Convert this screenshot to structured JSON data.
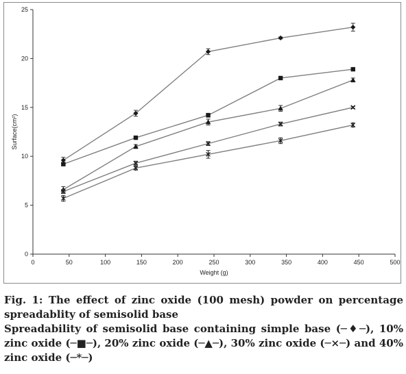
{
  "chart_data": {
    "type": "line",
    "xlabel": "Weight (g)",
    "ylabel": "Surface(cm²)",
    "xlim": [
      0,
      500
    ],
    "ylim": [
      0,
      25
    ],
    "xticks": [
      0,
      50,
      100,
      150,
      200,
      250,
      300,
      350,
      400,
      450,
      500
    ],
    "yticks": [
      0,
      5,
      10,
      15,
      20,
      25
    ],
    "grid": false,
    "legend": "none",
    "series": [
      {
        "marker": "diamond",
        "color": "#1a1a1a",
        "x": [
          42,
          142,
          242,
          342,
          442
        ],
        "y": [
          9.6,
          14.4,
          20.7,
          22.1,
          23.2
        ],
        "err": [
          0.3,
          0.3,
          0.3,
          0.1,
          0.4
        ]
      },
      {
        "marker": "square",
        "color": "#1a1a1a",
        "x": [
          42,
          142,
          242,
          342,
          442
        ],
        "y": [
          9.2,
          11.9,
          14.2,
          18.0,
          18.9
        ],
        "err": [
          0.1,
          0.1,
          0.2,
          0.1,
          0.1
        ]
      },
      {
        "marker": "triangle",
        "color": "#1a1a1a",
        "x": [
          42,
          142,
          242,
          342,
          442
        ],
        "y": [
          6.6,
          11.0,
          13.5,
          14.9,
          17.8
        ],
        "err": [
          0.3,
          0.2,
          0.3,
          0.3,
          0.2
        ]
      },
      {
        "marker": "x",
        "color": "#1a1a1a",
        "x": [
          42,
          142,
          242,
          342,
          442
        ],
        "y": [
          6.4,
          9.3,
          11.3,
          13.3,
          15.0
        ],
        "err": [
          0.2,
          0.2,
          0.2,
          0.2,
          0.1
        ]
      },
      {
        "marker": "asterisk",
        "color": "#1a1a1a",
        "x": [
          42,
          142,
          242,
          342,
          442
        ],
        "y": [
          5.7,
          8.8,
          10.2,
          11.6,
          13.2
        ],
        "err": [
          0.3,
          0.2,
          0.4,
          0.3,
          0.2
        ]
      }
    ],
    "line_color": "#7f7f7f"
  },
  "caption": {
    "title": "Fig. 1: The effect of zinc oxide (100 mesh) powder on percentage spreadablity of semisolid base",
    "body": "Spreadability of semisolid base containing simple base (─♦─), 10% zinc oxide (─■─), 20% zinc oxide (─▲─), 30% zinc oxide (─×─) and 40% zinc oxide (─*─)"
  }
}
